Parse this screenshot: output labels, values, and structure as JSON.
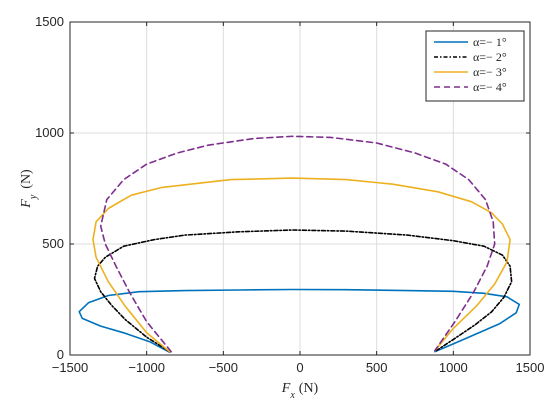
{
  "chart_data": {
    "type": "line",
    "title": "",
    "xlabel": {
      "main": "F",
      "sub": "x",
      "unit": "(N)"
    },
    "ylabel": {
      "main": "F",
      "sub": "y",
      "unit": "(N)"
    },
    "xlim": [
      -1500,
      1500
    ],
    "ylim": [
      0,
      1500
    ],
    "xticks": [
      -1500,
      -1000,
      -500,
      0,
      500,
      1000,
      1500
    ],
    "yticks": [
      0,
      500,
      1000,
      1500
    ],
    "xtick_labels": [
      "−1500",
      "−1000",
      "−500",
      "0",
      "500",
      "1000",
      "1500"
    ],
    "ytick_labels": [
      "0",
      "500",
      "1000",
      "1500"
    ],
    "grid": true,
    "legend_position": "top-right",
    "series": [
      {
        "name": "α=− 1°",
        "color": "#0072BD",
        "dash": "solid",
        "points": [
          [
            -850,
            12
          ],
          [
            -980,
            60
          ],
          [
            -1150,
            100
          ],
          [
            -1300,
            130
          ],
          [
            -1420,
            165
          ],
          [
            -1440,
            195
          ],
          [
            -1380,
            235
          ],
          [
            -1250,
            268
          ],
          [
            -1050,
            285
          ],
          [
            -750,
            290
          ],
          [
            -400,
            293
          ],
          [
            -50,
            295
          ],
          [
            300,
            294
          ],
          [
            700,
            290
          ],
          [
            1000,
            287
          ],
          [
            1200,
            278
          ],
          [
            1350,
            262
          ],
          [
            1430,
            228
          ],
          [
            1410,
            190
          ],
          [
            1300,
            140
          ],
          [
            1150,
            95
          ],
          [
            1000,
            50
          ],
          [
            880,
            15
          ]
        ]
      },
      {
        "name": "α=− 2°",
        "color": "#000000",
        "dash": "4,2,1.5,2",
        "points": [
          [
            -850,
            15
          ],
          [
            -1000,
            80
          ],
          [
            -1140,
            160
          ],
          [
            -1230,
            225
          ],
          [
            -1300,
            285
          ],
          [
            -1340,
            345
          ],
          [
            -1320,
            400
          ],
          [
            -1270,
            440
          ],
          [
            -1150,
            490
          ],
          [
            -950,
            520
          ],
          [
            -750,
            540
          ],
          [
            -400,
            555
          ],
          [
            -50,
            563
          ],
          [
            300,
            558
          ],
          [
            700,
            540
          ],
          [
            1000,
            515
          ],
          [
            1200,
            490
          ],
          [
            1320,
            450
          ],
          [
            1370,
            400
          ],
          [
            1380,
            330
          ],
          [
            1330,
            260
          ],
          [
            1250,
            195
          ],
          [
            1140,
            135
          ],
          [
            1010,
            75
          ],
          [
            890,
            20
          ]
        ]
      },
      {
        "name": "α=− 3°",
        "color": "#EDB120",
        "dash": "solid",
        "points": [
          [
            -850,
            15
          ],
          [
            -1000,
            100
          ],
          [
            -1140,
            220
          ],
          [
            -1250,
            330
          ],
          [
            -1330,
            440
          ],
          [
            -1350,
            520
          ],
          [
            -1330,
            600
          ],
          [
            -1250,
            660
          ],
          [
            -1100,
            720
          ],
          [
            -900,
            755
          ],
          [
            -450,
            790
          ],
          [
            -50,
            797
          ],
          [
            300,
            790
          ],
          [
            600,
            770
          ],
          [
            900,
            735
          ],
          [
            1120,
            690
          ],
          [
            1250,
            640
          ],
          [
            1320,
            590
          ],
          [
            1370,
            520
          ],
          [
            1350,
            420
          ],
          [
            1270,
            320
          ],
          [
            1150,
            220
          ],
          [
            1000,
            120
          ],
          [
            880,
            20
          ]
        ]
      },
      {
        "name": "α=− 4°",
        "color": "#7E2F8E",
        "dash": "6,4",
        "points": [
          [
            -840,
            15
          ],
          [
            -1000,
            150
          ],
          [
            -1110,
            280
          ],
          [
            -1200,
            400
          ],
          [
            -1270,
            500
          ],
          [
            -1300,
            580
          ],
          [
            -1260,
            700
          ],
          [
            -1150,
            790
          ],
          [
            -1000,
            860
          ],
          [
            -800,
            910
          ],
          [
            -600,
            945
          ],
          [
            -300,
            975
          ],
          [
            -50,
            985
          ],
          [
            200,
            980
          ],
          [
            500,
            955
          ],
          [
            750,
            910
          ],
          [
            950,
            860
          ],
          [
            1100,
            790
          ],
          [
            1210,
            700
          ],
          [
            1260,
            600
          ],
          [
            1270,
            500
          ],
          [
            1220,
            400
          ],
          [
            1130,
            280
          ],
          [
            1010,
            150
          ],
          [
            880,
            20
          ]
        ]
      }
    ]
  }
}
